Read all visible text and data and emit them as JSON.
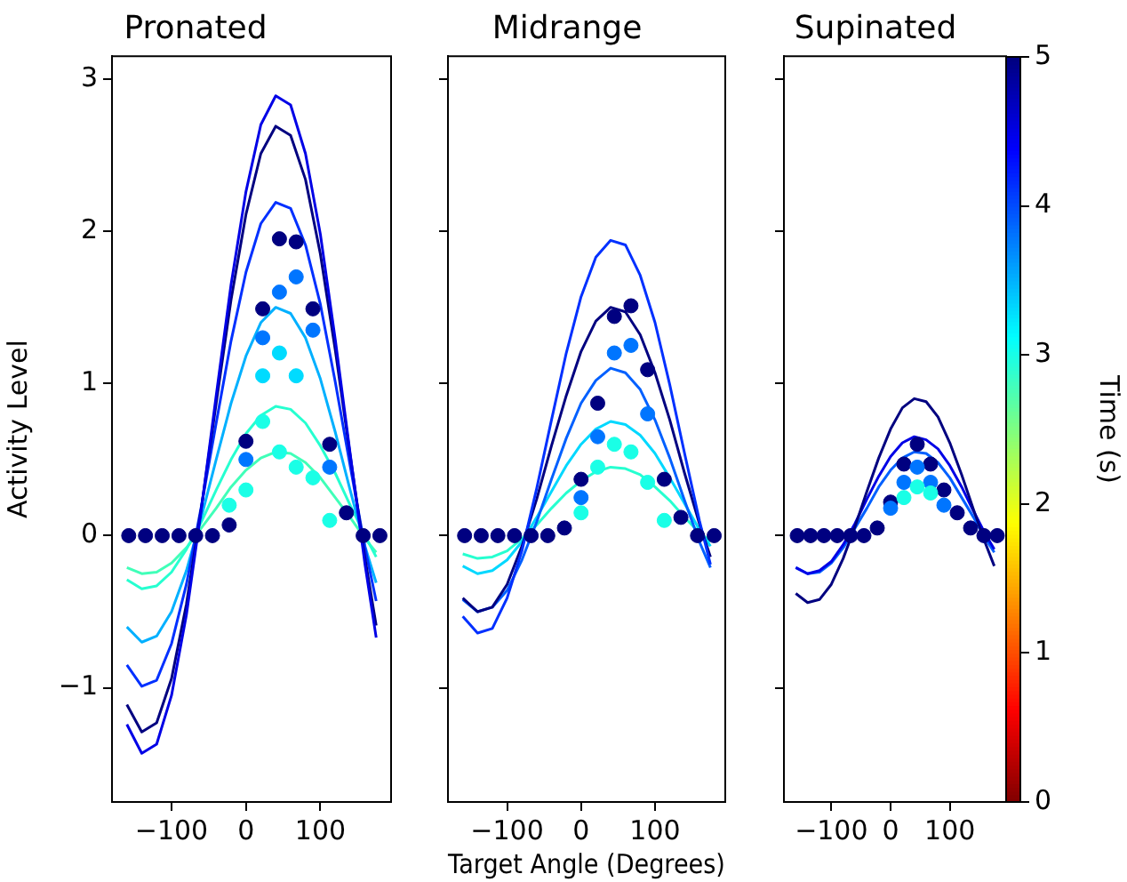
{
  "chart_data": [
    {
      "type": "line",
      "title": "Pronated",
      "ylabel": "Activity Level",
      "xlim": [
        -180,
        195
      ],
      "xticks": [
        -100,
        0,
        100
      ],
      "ylim": [
        -1.75,
        3.15
      ],
      "yticks": [
        -1,
        0,
        1,
        2,
        3
      ],
      "grid": false,
      "legend": false,
      "x": [
        -160,
        -140,
        -120,
        -100,
        -80,
        -60,
        -40,
        -20,
        0,
        20,
        40,
        60,
        80,
        100,
        120,
        140,
        160,
        175
      ],
      "series": [
        {
          "type": "line",
          "marker": "none",
          "color": "#0000e6",
          "values": [
            -1.24,
            -1.43,
            -1.37,
            -1.05,
            -0.52,
            0.17,
            0.92,
            1.65,
            2.26,
            2.7,
            2.89,
            2.83,
            2.51,
            1.98,
            1.29,
            0.54,
            -0.19,
            -0.67
          ]
        },
        {
          "type": "line",
          "marker": "none",
          "color": "#000080",
          "values": [
            -1.11,
            -1.29,
            -1.23,
            -0.94,
            -0.45,
            0.18,
            0.87,
            1.55,
            2.11,
            2.51,
            2.69,
            2.63,
            2.34,
            1.85,
            1.22,
            0.53,
            -0.15,
            -0.59
          ]
        },
        {
          "type": "line",
          "marker": "none",
          "color": "#0030ff",
          "values": [
            -0.85,
            -0.99,
            -0.95,
            -0.71,
            -0.32,
            0.19,
            0.74,
            1.28,
            1.73,
            2.05,
            2.19,
            2.15,
            1.91,
            1.52,
            1.01,
            0.46,
            -0.08,
            -0.43
          ]
        },
        {
          "type": "line",
          "marker": "none",
          "color": "#00b0ff",
          "values": [
            -0.6,
            -0.7,
            -0.66,
            -0.5,
            -0.23,
            0.12,
            0.5,
            0.87,
            1.18,
            1.4,
            1.5,
            1.46,
            1.3,
            1.03,
            0.68,
            0.3,
            -0.07,
            -0.31
          ]
        },
        {
          "type": "line",
          "marker": "none",
          "color": "#26ffd0",
          "values": [
            -0.29,
            -0.35,
            -0.33,
            -0.24,
            -0.09,
            0.09,
            0.3,
            0.5,
            0.67,
            0.79,
            0.85,
            0.83,
            0.74,
            0.59,
            0.41,
            0.2,
            0,
            -0.14
          ]
        },
        {
          "type": "line",
          "marker": "none",
          "color": "#40ffb8",
          "values": [
            -0.21,
            -0.25,
            -0.24,
            -0.18,
            -0.08,
            0.05,
            0.18,
            0.32,
            0.43,
            0.51,
            0.55,
            0.54,
            0.48,
            0.38,
            0.25,
            0.12,
            -0.02,
            -0.11
          ]
        },
        {
          "type": "scatter",
          "marker": "circle",
          "x": [
            -157.5,
            -135,
            -112.5,
            -90,
            -67.5,
            -45,
            -22.5,
            0,
            22.5,
            45,
            67.5,
            90,
            112.5,
            135,
            157.5,
            180,
            0,
            22.5,
            45,
            67.5,
            90,
            112.5,
            22.5,
            45,
            67.5,
            -22.5,
            0,
            22.5,
            45,
            67.5,
            90,
            112.5
          ],
          "values": [
            0,
            0,
            0,
            0,
            0,
            0,
            0.07,
            0.62,
            1.49,
            1.95,
            1.93,
            1.49,
            0.6,
            0.15,
            0,
            0,
            0.5,
            1.3,
            1.6,
            1.7,
            1.35,
            0.45,
            1.05,
            1.2,
            1.05,
            0.2,
            0.3,
            0.75,
            0.55,
            0.45,
            0.38,
            0.1
          ],
          "colors": [
            "#000080",
            "#000080",
            "#000080",
            "#000080",
            "#000080",
            "#000080",
            "#000080",
            "#000080",
            "#000080",
            "#000080",
            "#000080",
            "#000080",
            "#000080",
            "#000080",
            "#000080",
            "#000080",
            "#0075ff",
            "#0075ff",
            "#0075ff",
            "#0075ff",
            "#0075ff",
            "#0075ff",
            "#00dbff",
            "#00dbff",
            "#00dbff",
            "#1affe6",
            "#1affe6",
            "#1affe6",
            "#1affe6",
            "#1affe6",
            "#1affe6",
            "#1affe6"
          ]
        }
      ]
    },
    {
      "type": "line",
      "title": "Midrange",
      "xlabel": "Target Angle (Degrees)",
      "xlim": [
        -180,
        195
      ],
      "xticks": [
        -100,
        0,
        100
      ],
      "ylim": [
        -1.75,
        3.15
      ],
      "yticks": [
        -1,
        0,
        1,
        2,
        3
      ],
      "tick_labels": "x",
      "grid": false,
      "legend": false,
      "x": [
        -160,
        -140,
        -120,
        -100,
        -80,
        -60,
        -40,
        -20,
        0,
        20,
        40,
        60,
        80,
        100,
        120,
        140,
        160,
        175
      ],
      "series": [
        {
          "type": "line",
          "marker": "none",
          "color": "#0030ff",
          "values": [
            -0.53,
            -0.64,
            -0.61,
            -0.41,
            -0.1,
            0.31,
            0.76,
            1.2,
            1.57,
            1.83,
            1.94,
            1.91,
            1.71,
            1.4,
            0.99,
            0.54,
            0.1,
            -0.19
          ]
        },
        {
          "type": "line",
          "marker": "none",
          "color": "#000080",
          "values": [
            -0.41,
            -0.5,
            -0.47,
            -0.32,
            -0.07,
            0.24,
            0.59,
            0.92,
            1.21,
            1.41,
            1.5,
            1.47,
            1.32,
            1.07,
            0.76,
            0.41,
            0.08,
            -0.14
          ]
        },
        {
          "type": "line",
          "marker": "none",
          "color": "#0060ff",
          "values": [
            -0.42,
            -0.5,
            -0.47,
            -0.36,
            -0.16,
            0.09,
            0.37,
            0.64,
            0.87,
            1.02,
            1.1,
            1.07,
            0.96,
            0.76,
            0.51,
            0.23,
            -0.04,
            -0.21
          ]
        },
        {
          "type": "line",
          "marker": "none",
          "color": "#00d8ff",
          "values": [
            -0.2,
            -0.25,
            -0.23,
            -0.16,
            -0.04,
            0.12,
            0.29,
            0.46,
            0.6,
            0.7,
            0.75,
            0.73,
            0.66,
            0.54,
            0.38,
            0.21,
            0.04,
            -0.07
          ]
        },
        {
          "type": "line",
          "marker": "none",
          "color": "#26ffd0",
          "values": [
            -0.12,
            -0.15,
            -0.14,
            -0.1,
            -0.02,
            0.07,
            0.18,
            0.28,
            0.36,
            0.42,
            0.45,
            0.44,
            0.4,
            0.32,
            0.23,
            0.12,
            0.02,
            -0.04
          ]
        },
        {
          "type": "scatter",
          "marker": "circle",
          "x": [
            -157.5,
            -135,
            -112.5,
            -90,
            -67.5,
            -45,
            -22.5,
            0,
            22.5,
            45,
            67.5,
            90,
            112.5,
            135,
            157.5,
            180,
            0,
            22.5,
            45,
            67.5,
            90,
            0,
            22.5,
            45,
            67.5,
            90,
            112.5
          ],
          "values": [
            0,
            0,
            0,
            0,
            0,
            0,
            0.05,
            0.37,
            0.87,
            1.44,
            1.51,
            1.09,
            0.37,
            0.12,
            0,
            0,
            0.25,
            0.65,
            1.2,
            1.25,
            0.8,
            0.15,
            0.45,
            0.6,
            0.55,
            0.35,
            0.1
          ],
          "colors": [
            "#000080",
            "#000080",
            "#000080",
            "#000080",
            "#000080",
            "#000080",
            "#000080",
            "#000080",
            "#000080",
            "#000080",
            "#000080",
            "#000080",
            "#000080",
            "#000080",
            "#000080",
            "#000080",
            "#0075ff",
            "#0075ff",
            "#0075ff",
            "#0075ff",
            "#0075ff",
            "#1affe6",
            "#1affe6",
            "#1affe6",
            "#1affe6",
            "#1affe6",
            "#1affe6"
          ]
        }
      ]
    },
    {
      "type": "line",
      "title": "Supinated",
      "xlim": [
        -180,
        195
      ],
      "xticks": [
        -100,
        0,
        100
      ],
      "ylim": [
        -1.75,
        3.15
      ],
      "yticks": [
        -1,
        0,
        1,
        2,
        3
      ],
      "tick_labels": "x",
      "grid": false,
      "legend": false,
      "clabel": "Time (s)",
      "clim": [
        0,
        5
      ],
      "cticks": [
        0,
        1,
        2,
        3,
        4,
        5
      ],
      "x": [
        -160,
        -140,
        -120,
        -100,
        -80,
        -60,
        -40,
        -20,
        0,
        20,
        40,
        60,
        80,
        100,
        120,
        140,
        160,
        175
      ],
      "series": [
        {
          "type": "line",
          "marker": "none",
          "color": "#000080",
          "values": [
            -0.38,
            -0.44,
            -0.42,
            -0.32,
            -0.15,
            0.06,
            0.29,
            0.51,
            0.7,
            0.84,
            0.9,
            0.88,
            0.78,
            0.61,
            0.4,
            0.17,
            -0.05,
            -0.2
          ]
        },
        {
          "type": "line",
          "marker": "none",
          "color": "#0000e6",
          "values": [
            -0.21,
            -0.25,
            -0.23,
            -0.17,
            -0.06,
            0.08,
            0.24,
            0.39,
            0.52,
            0.61,
            0.65,
            0.63,
            0.57,
            0.46,
            0.32,
            0.16,
            0.01,
            -0.09
          ]
        },
        {
          "type": "line",
          "marker": "none",
          "color": "#0060ff",
          "values": [
            -0.21,
            -0.25,
            -0.24,
            -0.18,
            -0.08,
            0.05,
            0.18,
            0.32,
            0.43,
            0.51,
            0.55,
            0.54,
            0.48,
            0.38,
            0.25,
            0.12,
            -0.02,
            -0.11
          ]
        },
        {
          "type": "scatter",
          "marker": "circle",
          "x": [
            -157.5,
            -135,
            -112.5,
            -90,
            -67.5,
            -45,
            -22.5,
            0,
            22.5,
            45,
            67.5,
            90,
            112.5,
            135,
            157.5,
            180,
            0,
            22.5,
            45,
            67.5,
            90,
            22.5,
            45,
            67.5
          ],
          "values": [
            0,
            0,
            0,
            0,
            0,
            0,
            0.05,
            0.22,
            0.47,
            0.6,
            0.47,
            0.3,
            0.15,
            0.05,
            0,
            0,
            0.18,
            0.35,
            0.45,
            0.35,
            0.2,
            0.25,
            0.32,
            0.28
          ],
          "cvalues": [
            5,
            5,
            5,
            5,
            5,
            5,
            5,
            5,
            5,
            5,
            5,
            5,
            5,
            5,
            5,
            5,
            3.8,
            3.8,
            3.8,
            3.8,
            3.8,
            3,
            3,
            3
          ],
          "colors": [
            "#000080",
            "#000080",
            "#000080",
            "#000080",
            "#000080",
            "#000080",
            "#000080",
            "#000080",
            "#000080",
            "#000080",
            "#000080",
            "#000080",
            "#000080",
            "#000080",
            "#000080",
            "#000080",
            "#0075ff",
            "#0075ff",
            "#0075ff",
            "#0075ff",
            "#0075ff",
            "#1affe6",
            "#1affe6",
            "#1affe6"
          ]
        }
      ]
    }
  ]
}
